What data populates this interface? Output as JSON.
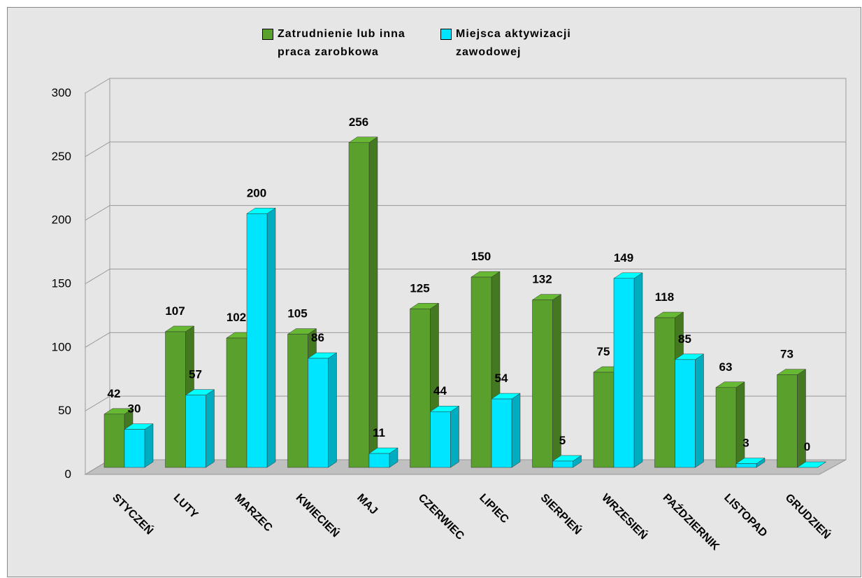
{
  "chart_data": {
    "type": "bar3d",
    "categories": [
      "STYCZEŃ",
      "LUTY",
      "MARZEC",
      "KWIECIEŃ",
      "MAJ",
      "CZERWIEC",
      "LIPIEC",
      "SIERPIEŃ",
      "WRZESIEŃ",
      "PAŹDZIERNIK",
      "LISTOPAD",
      "GRUDZIEŃ"
    ],
    "series": [
      {
        "name": "Zatrudnienie lub inna praca zarobkowa",
        "color": "#5aa02c",
        "values": [
          42,
          107,
          102,
          105,
          256,
          125,
          150,
          132,
          75,
          118,
          63,
          73
        ]
      },
      {
        "name": "Miejsca aktywizacji zawodowej",
        "color": "#00e5ff",
        "values": [
          30,
          57,
          200,
          86,
          11,
          44,
          54,
          5,
          149,
          85,
          3,
          0
        ]
      }
    ],
    "ylim": [
      0,
      300
    ],
    "yticks": [
      0,
      50,
      100,
      150,
      200,
      250,
      300
    ],
    "grid": true,
    "legend": "top"
  }
}
